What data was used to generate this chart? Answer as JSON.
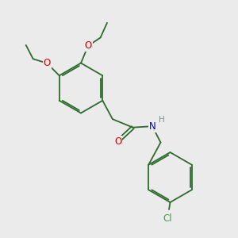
{
  "background_color": "#ebebeb",
  "bond_color": "#2d6b2d",
  "O_color": "#cc0000",
  "N_color": "#0000cc",
  "Cl_color": "#4a9a4a",
  "H_color": "#888888",
  "line_width": 1.3,
  "figsize": [
    3.0,
    3.0
  ],
  "dpi": 100,
  "xlim": [
    0,
    10
  ],
  "ylim": [
    0,
    10
  ]
}
